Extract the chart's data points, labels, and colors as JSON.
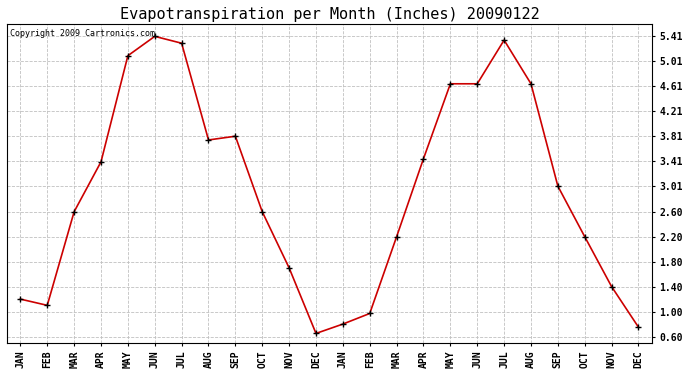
{
  "title": "Evapotranspiration per Month (Inches) 20090122",
  "copyright_text": "Copyright 2009 Cartronics.com",
  "months": [
    "JAN",
    "FEB",
    "MAR",
    "APR",
    "MAY",
    "JUN",
    "JUL",
    "AUG",
    "SEP",
    "OCT",
    "NOV",
    "DEC",
    "JAN",
    "FEB",
    "MAR",
    "APR",
    "MAY",
    "JUN",
    "JUL",
    "AUG",
    "SEP",
    "OCT",
    "NOV",
    "DEC"
  ],
  "values": [
    1.2,
    1.1,
    2.6,
    3.4,
    5.1,
    5.41,
    5.3,
    3.75,
    3.81,
    2.6,
    1.7,
    0.65,
    0.8,
    0.97,
    2.2,
    3.45,
    4.65,
    4.65,
    5.35,
    4.65,
    3.01,
    2.2,
    1.4,
    0.75
  ],
  "yticks": [
    0.6,
    1.0,
    1.4,
    1.8,
    2.2,
    2.6,
    3.01,
    3.41,
    3.81,
    4.21,
    4.61,
    5.01,
    5.41
  ],
  "line_color": "#cc0000",
  "marker_color": "#000000",
  "bg_color": "#ffffff",
  "grid_color": "#c0c0c0",
  "title_fontsize": 11,
  "copyright_fontsize": 6,
  "tick_fontsize": 7,
  "ylim": [
    0.5,
    5.6
  ]
}
